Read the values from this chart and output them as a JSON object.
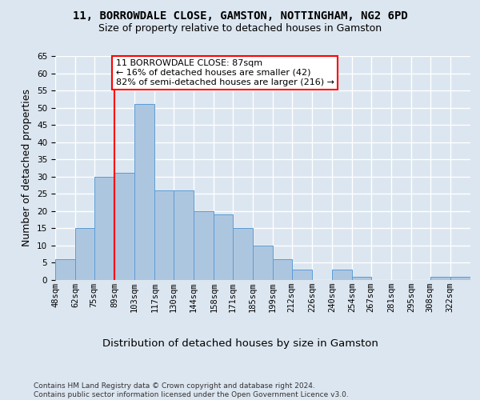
{
  "title1": "11, BORROWDALE CLOSE, GAMSTON, NOTTINGHAM, NG2 6PD",
  "title2": "Size of property relative to detached houses in Gamston",
  "xlabel": "Distribution of detached houses by size in Gamston",
  "ylabel": "Number of detached properties",
  "bin_labels": [
    "48sqm",
    "62sqm",
    "75sqm",
    "89sqm",
    "103sqm",
    "117sqm",
    "130sqm",
    "144sqm",
    "158sqm",
    "171sqm",
    "185sqm",
    "199sqm",
    "212sqm",
    "226sqm",
    "240sqm",
    "254sqm",
    "267sqm",
    "281sqm",
    "295sqm",
    "308sqm",
    "322sqm"
  ],
  "bin_edges": [
    48,
    62,
    75,
    89,
    103,
    117,
    130,
    144,
    158,
    171,
    185,
    199,
    212,
    226,
    240,
    254,
    267,
    281,
    295,
    308,
    322
  ],
  "bar_values": [
    6,
    15,
    30,
    31,
    51,
    26,
    26,
    20,
    19,
    15,
    10,
    6,
    3,
    0,
    3,
    1,
    0,
    0,
    0,
    1,
    1
  ],
  "bar_color": "#adc6e0",
  "bar_edge_color": "#5b9bd5",
  "red_line_x": 89,
  "annotation_text": "11 BORROWDALE CLOSE: 87sqm\n← 16% of detached houses are smaller (42)\n82% of semi-detached houses are larger (216) →",
  "annotation_box_color": "white",
  "annotation_border_color": "red",
  "ylim": [
    0,
    65
  ],
  "yticks": [
    0,
    5,
    10,
    15,
    20,
    25,
    30,
    35,
    40,
    45,
    50,
    55,
    60,
    65
  ],
  "footer_text": "Contains HM Land Registry data © Crown copyright and database right 2024.\nContains public sector information licensed under the Open Government Licence v3.0.",
  "bg_color": "#dce6f0",
  "plot_bg_color": "#dce6f0",
  "grid_color": "white",
  "title1_fontsize": 10,
  "title2_fontsize": 9,
  "axis_label_fontsize": 9,
  "tick_fontsize": 7.5,
  "annotation_fontsize": 8,
  "footer_fontsize": 6.5
}
